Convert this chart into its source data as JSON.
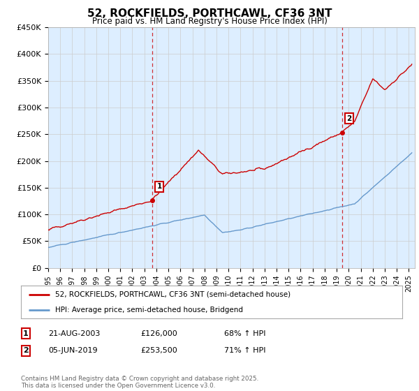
{
  "title": "52, ROCKFIELDS, PORTHCAWL, CF36 3NT",
  "subtitle": "Price paid vs. HM Land Registry's House Price Index (HPI)",
  "ylabel_ticks": [
    "£0",
    "£50K",
    "£100K",
    "£150K",
    "£200K",
    "£250K",
    "£300K",
    "£350K",
    "£400K",
    "£450K"
  ],
  "ylim": [
    0,
    450000
  ],
  "xlim_start": 1995.0,
  "xlim_end": 2025.5,
  "red_line_color": "#cc0000",
  "blue_line_color": "#6699cc",
  "grid_color": "#cccccc",
  "plot_bg_color": "#ddeeff",
  "legend_label_red": "52, ROCKFIELDS, PORTHCAWL, CF36 3NT (semi-detached house)",
  "legend_label_blue": "HPI: Average price, semi-detached house, Bridgend",
  "marker1_x": 2003.64,
  "marker1_y": 126000,
  "marker1_label": "1",
  "marker2_x": 2019.43,
  "marker2_y": 253500,
  "marker2_label": "2",
  "footer": "Contains HM Land Registry data © Crown copyright and database right 2025.\nThis data is licensed under the Open Government Licence v3.0."
}
